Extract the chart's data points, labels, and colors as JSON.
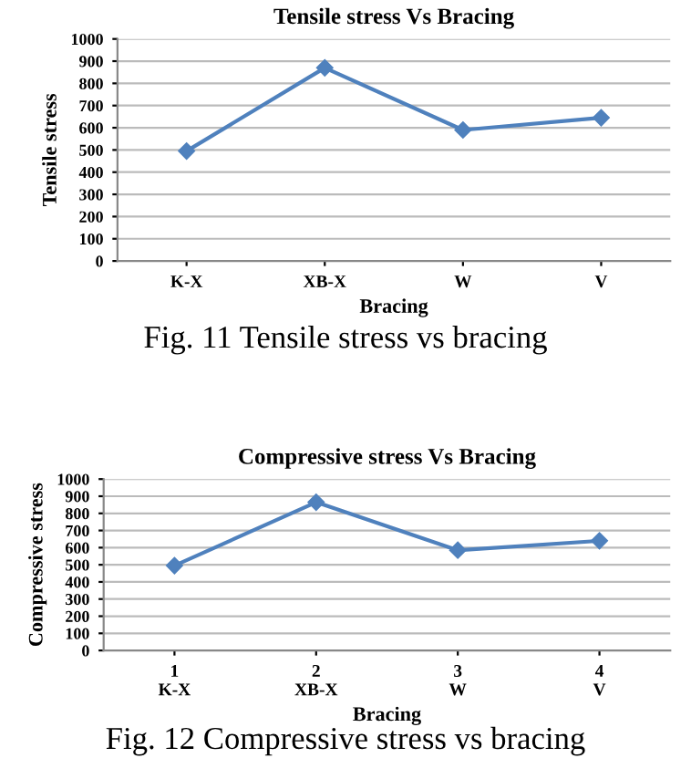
{
  "chart_data": [
    {
      "type": "line",
      "title": "Tensile stress Vs Bracing",
      "xlabel": "Bracing",
      "ylabel": "Tensile stress",
      "categories": [
        "K-X",
        "XB-X",
        "W",
        "V"
      ],
      "series": [
        {
          "color": "#4f81bd",
          "values": [
            495,
            870,
            590,
            645
          ]
        }
      ],
      "ylim": [
        0,
        1000
      ],
      "yticks": [
        0,
        100,
        200,
        300,
        400,
        500,
        600,
        700,
        800,
        900,
        1000
      ],
      "grid": "y",
      "marker": "diamond",
      "line_style": "solid",
      "annotations": [
        "Fig. 11 Tensile stress vs bracing"
      ]
    },
    {
      "type": "line",
      "title": "Compressive stress Vs Bracing",
      "xlabel": "Bracing",
      "ylabel": "Compressive stress",
      "categories": [
        "1\nK-X",
        "2\nXB-X",
        "3\nW",
        "4\nV"
      ],
      "series": [
        {
          "color": "#4f81bd",
          "values": [
            495,
            865,
            585,
            640
          ]
        }
      ],
      "ylim": [
        0,
        1000
      ],
      "yticks": [
        0,
        100,
        200,
        300,
        400,
        500,
        600,
        700,
        800,
        900,
        1000
      ],
      "grid": "y",
      "marker": "diamond",
      "line_style": "solid",
      "annotations": [
        "Fig. 12 Compressive stress vs bracing"
      ]
    }
  ]
}
